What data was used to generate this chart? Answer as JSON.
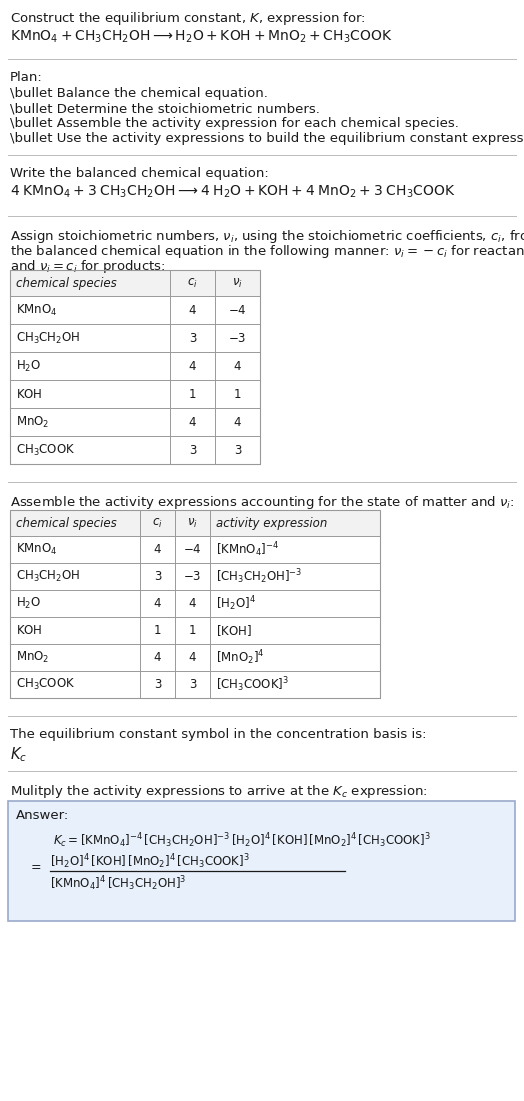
{
  "bg_color": "#ffffff",
  "text_color": "#1a1a1a",
  "table_border_color": "#999999",
  "answer_box_color": "#e8f0fb",
  "answer_box_border": "#99aacc",
  "header_bg": "#f2f2f2",
  "sections": {
    "title_line1": "Construct the equilibrium constant, $K$, expression for:",
    "title_line2": "$\\mathrm{KMnO_4 + CH_3CH_2OH} \\longrightarrow \\mathrm{H_2O + KOH + MnO_2 + CH_3COOK}$",
    "plan_header": "Plan:",
    "plan_bullets": [
      "\\bullet Balance the chemical equation.",
      "\\bullet Determine the stoichiometric numbers.",
      "\\bullet Assemble the activity expression for each chemical species.",
      "\\bullet Use the activity expressions to build the equilibrium constant expression."
    ],
    "balanced_header": "Write the balanced chemical equation:",
    "balanced_eq": "$\\mathrm{4\\;KMnO_4 + 3\\;CH_3CH_2OH} \\longrightarrow \\mathrm{4\\;H_2O + KOH + 4\\;MnO_2 + 3\\;CH_3COOK}$",
    "stoich_text1": "Assign stoichiometric numbers, $\\nu_i$, using the stoichiometric coefficients, $c_i$, from",
    "stoich_text2": "the balanced chemical equation in the following manner: $\\nu_i = -c_i$ for reactants",
    "stoich_text3": "and $\\nu_i = c_i$ for products:",
    "activity_header": "Assemble the activity expressions accounting for the state of matter and $\\nu_i$:",
    "kc_header": "The equilibrium constant symbol in the concentration basis is:",
    "kc_symbol": "$K_c$",
    "multiply_header": "Mulitply the activity expressions to arrive at the $K_c$ expression:",
    "answer_label": "Answer:"
  },
  "table1_headers": [
    "chemical species",
    "$c_i$",
    "$\\nu_i$"
  ],
  "table1_rows": [
    [
      "$\\mathrm{KMnO_4}$",
      "4",
      "$-4$"
    ],
    [
      "$\\mathrm{CH_3CH_2OH}$",
      "3",
      "$-3$"
    ],
    [
      "$\\mathrm{H_2O}$",
      "4",
      "4"
    ],
    [
      "$\\mathrm{KOH}$",
      "1",
      "1"
    ],
    [
      "$\\mathrm{MnO_2}$",
      "4",
      "4"
    ],
    [
      "$\\mathrm{CH_3COOK}$",
      "3",
      "3"
    ]
  ],
  "table2_headers": [
    "chemical species",
    "$c_i$",
    "$\\nu_i$",
    "activity expression"
  ],
  "table2_rows": [
    [
      "$\\mathrm{KMnO_4}$",
      "4",
      "$-4$",
      "$[\\mathrm{KMnO_4}]^{-4}$"
    ],
    [
      "$\\mathrm{CH_3CH_2OH}$",
      "3",
      "$-3$",
      "$[\\mathrm{CH_3CH_2OH}]^{-3}$"
    ],
    [
      "$\\mathrm{H_2O}$",
      "4",
      "4",
      "$[\\mathrm{H_2O}]^{4}$"
    ],
    [
      "$\\mathrm{KOH}$",
      "1",
      "1",
      "$[\\mathrm{KOH}]$"
    ],
    [
      "$\\mathrm{MnO_2}$",
      "4",
      "4",
      "$[\\mathrm{MnO_2}]^{4}$"
    ],
    [
      "$\\mathrm{CH_3COOK}$",
      "3",
      "3",
      "$[\\mathrm{CH_3COOK}]^{3}$"
    ]
  ],
  "answer_eq1": "$K_c = [\\mathrm{KMnO_4}]^{-4}\\,[\\mathrm{CH_3CH_2OH}]^{-3}\\,[\\mathrm{H_2O}]^4\\,[\\mathrm{KOH}]\\,[\\mathrm{MnO_2}]^4\\,[\\mathrm{CH_3COOK}]^3$",
  "answer_num": "$[\\mathrm{H_2O}]^4\\,[\\mathrm{KOH}]\\,[\\mathrm{MnO_2}]^4\\,[\\mathrm{CH_3COOK}]^3$",
  "answer_den": "$[\\mathrm{KMnO_4}]^4\\,[\\mathrm{CH_3CH_2OH}]^3$"
}
